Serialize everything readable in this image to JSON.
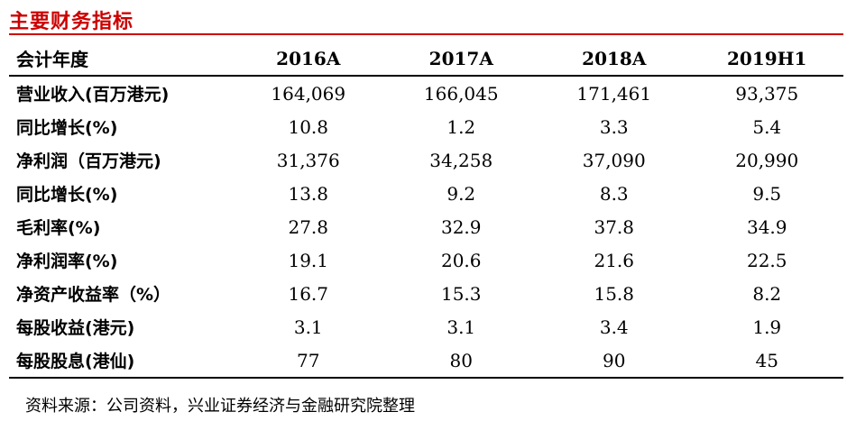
{
  "title": "主要财务指标",
  "colors": {
    "title": "#cc0000",
    "rule": "#cc0000"
  },
  "table": {
    "headers": [
      "会计年度",
      "2016A",
      "2017A",
      "2018A",
      "2019H1"
    ],
    "rows": [
      {
        "label": "营业收入(百万港元)",
        "values": [
          "164,069",
          "166,045",
          "171,461",
          "93,375"
        ]
      },
      {
        "label": "同比增长(%)",
        "values": [
          "10.8",
          "1.2",
          "3.3",
          "5.4"
        ]
      },
      {
        "label": "净利润（百万港元)",
        "values": [
          "31,376",
          "34,258",
          "37,090",
          "20,990"
        ]
      },
      {
        "label": "同比增长(%)",
        "values": [
          "13.8",
          "9.2",
          "8.3",
          "9.5"
        ]
      },
      {
        "label": "毛利率(%)",
        "values": [
          "27.8",
          "32.9",
          "37.8",
          "34.9"
        ]
      },
      {
        "label": "净利润率(%)",
        "values": [
          "19.1",
          "20.6",
          "21.6",
          "22.5"
        ]
      },
      {
        "label": "净资产收益率（%）",
        "values": [
          "16.7",
          "15.3",
          "15.8",
          "8.2"
        ]
      },
      {
        "label": "每股收益(港元)",
        "values": [
          "3.1",
          "3.1",
          "3.4",
          "1.9"
        ]
      },
      {
        "label": "每股股息(港仙)",
        "values": [
          "77",
          "80",
          "90",
          "45"
        ]
      }
    ]
  },
  "source": "资料来源：公司资料，兴业证券经济与金融研究院整理"
}
